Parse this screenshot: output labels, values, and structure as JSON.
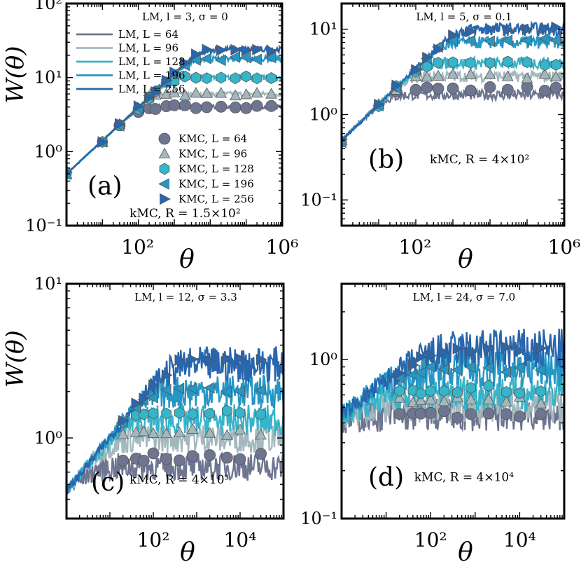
{
  "colors": {
    "L64": "#6e7591",
    "L96": "#a3b8bd",
    "L128": "#36b4c9",
    "L196": "#2696c5",
    "L256": "#2866ae"
  },
  "chart_data": [
    {
      "type": "line",
      "panel_label": "(a)",
      "top_note": "LM, l = 3, σ = 0",
      "bottom_note": "kMC, R = 1.5×10²",
      "xlabel": "θ",
      "ylabel": "W(θ)",
      "xscale": "log",
      "yscale": "log",
      "xlim": [
        1,
        1000000
      ],
      "ylim": [
        0.1,
        100
      ],
      "xtick_labels": [
        "10²",
        "10⁶"
      ],
      "ytick_labels": [
        "10⁻¹",
        "10⁰",
        "10¹",
        "10²"
      ],
      "legend_lines": [
        "LM, L = 64",
        "LM, L = 96",
        "LM, L = 128",
        "LM, L = 196",
        "LM, L = 256"
      ],
      "legend_markers": [
        "KMC, L = 64",
        "KMC, L = 96",
        "KMC, L = 128",
        "KMC, L = 196",
        "KMC, L = 256"
      ],
      "params": {
        "w0": 0.5,
        "beta": 0.45,
        "ws": [
          4,
          6,
          10,
          18,
          24
        ],
        "wsm": [
          4,
          6,
          10,
          18,
          24
        ],
        "noise": 0.02,
        "lineStart": 1,
        "markerStart": 1
      },
      "marker_x": [
        1,
        10,
        30,
        100,
        200,
        300,
        600,
        1000,
        2000,
        4000,
        8000,
        20000,
        50000,
        100000,
        200000,
        500000
      ]
    },
    {
      "type": "line",
      "panel_label": "(b)",
      "top_note": "LM, l = 5, σ = 0.1",
      "bottom_note": "kMC, R = 4×10²",
      "xlabel": "θ",
      "xscale": "log",
      "yscale": "log",
      "xlim": [
        1,
        1000000
      ],
      "ylim": [
        0.05,
        20
      ],
      "xtick_labels": [
        "10²",
        "10⁶"
      ],
      "ytick_labels": [
        "10⁻¹",
        "10⁰",
        "10¹"
      ],
      "params": {
        "w0": 0.5,
        "beta": 0.42,
        "ws": [
          1.7,
          2.8,
          4,
          7,
          10
        ],
        "wsm": [
          2,
          2.8,
          4,
          7.5,
          10
        ],
        "noise": 0.04,
        "lineStart": 1,
        "markerStart": 1
      },
      "marker_x": [
        1,
        10,
        30,
        100,
        200,
        400,
        1000,
        3000,
        10000,
        30000,
        100000,
        300000,
        600000
      ]
    },
    {
      "type": "line",
      "panel_label": "(c)",
      "top_note": "LM, l = 12, σ = 3.3",
      "bottom_note": "kMC, R = 4×10³",
      "xlabel": "θ",
      "ylabel": "W(θ)",
      "xscale": "log",
      "yscale": "log",
      "xlim": [
        1,
        100000
      ],
      "ylim": [
        0.3,
        10
      ],
      "xtick_labels": [
        "10²",
        "10⁴"
      ],
      "ytick_labels": [
        "10⁰",
        "10¹"
      ],
      "params": {
        "w0": 0.45,
        "beta": 0.35,
        "ws": [
          0.65,
          1.0,
          1.3,
          2.0,
          3.0
        ],
        "wsm": [
          0.75,
          1.1,
          1.5,
          2.1,
          3.3
        ],
        "noise": 0.06,
        "lineStart": 1,
        "markerStart": 20
      },
      "marker_x": [
        20,
        40,
        60,
        100,
        200,
        400,
        800,
        2000,
        5000,
        10000,
        30000
      ]
    },
    {
      "type": "line",
      "panel_label": "(d)",
      "top_note": "LM, l = 24, σ = 7.0",
      "bottom_note": "kMC, R = 4×10⁴",
      "xlabel": "θ",
      "xscale": "log",
      "yscale": "log",
      "xlim": [
        1,
        100000
      ],
      "ylim": [
        0.1,
        3
      ],
      "xtick_labels": [
        "10²",
        "10⁴"
      ],
      "ytick_labels": [
        "10⁻¹",
        "10⁰"
      ],
      "params": {
        "w0": 0.45,
        "beta": 0.22,
        "ws": [
          0.45,
          0.52,
          0.62,
          0.88,
          1.15
        ],
        "wsm": [
          0.45,
          0.55,
          0.65,
          0.88,
          1.15
        ],
        "noise": 0.07,
        "lineStart": 1,
        "markerStart": 20
      },
      "marker_x": [
        20,
        40,
        60,
        100,
        200,
        400,
        800,
        2000,
        5000,
        10000,
        30000
      ]
    }
  ]
}
